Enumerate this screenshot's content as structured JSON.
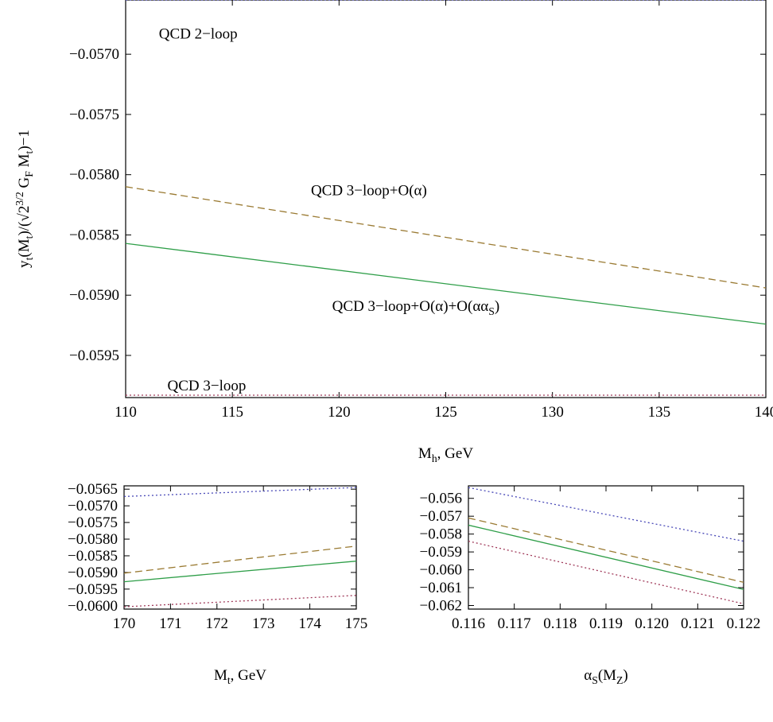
{
  "chart_data": [
    {
      "type": "line",
      "xlabel": "M_h, GeV",
      "ylabel": "y_t(M_t)/(√2^{3/2} G_F M_t)−1",
      "xlim": [
        110,
        140
      ],
      "ylim": [
        -0.05985,
        -0.05655
      ],
      "xticks": [
        110,
        115,
        120,
        125,
        130,
        135,
        140
      ],
      "yticks": [
        -0.057,
        -0.0575,
        -0.058,
        -0.0585,
        -0.059,
        -0.0595
      ],
      "ytick_labels": [
        "−0.0570",
        "−0.0575",
        "−0.0580",
        "−0.0585",
        "−0.0590",
        "−0.0595"
      ],
      "grid": false,
      "series": [
        {
          "name": "QCD 2−loop",
          "color": "#4a4ab8",
          "dash": "dotted",
          "x": [
            110,
            140
          ],
          "y": [
            -0.05655,
            -0.05655
          ]
        },
        {
          "name": "QCD 3−loop+O(α)",
          "color": "#9a7a32",
          "dash": "dashed",
          "x": [
            110,
            140
          ],
          "y": [
            -0.0581,
            -0.05894
          ]
        },
        {
          "name": "QCD 3−loop+O(α)+O(αα_S)",
          "color": "#2e9e48",
          "dash": "solid",
          "x": [
            110,
            140
          ],
          "y": [
            -0.05857,
            -0.05924
          ]
        },
        {
          "name": "QCD 3−loop",
          "color": "#a03a5a",
          "dash": "dotted",
          "x": [
            110,
            140
          ],
          "y": [
            -0.05983,
            -0.05983
          ]
        }
      ],
      "annotations": [
        {
          "text": "QCD 2−loop",
          "x": 113.4,
          "y": -0.05683
        },
        {
          "text": "QCD 3−loop+O(α)",
          "x": 121.4,
          "y": -0.05813
        },
        {
          "text": "QCD 3−loop+O(α)+O(αα_S)",
          "x": 123.6,
          "y": -0.05909
        },
        {
          "text": "QCD 3−loop",
          "x": 113.8,
          "y": -0.05975
        }
      ]
    },
    {
      "type": "line",
      "xlabel": "M_t, GeV",
      "ylabel": "",
      "xlim": [
        170,
        175
      ],
      "ylim": [
        -0.0601,
        -0.0564
      ],
      "xticks": [
        170,
        171,
        172,
        173,
        174,
        175
      ],
      "yticks": [
        -0.0565,
        -0.057,
        -0.0575,
        -0.058,
        -0.0585,
        -0.059,
        -0.0595,
        -0.06
      ],
      "ytick_labels": [
        "−0.0565",
        "−0.0570",
        "−0.0575",
        "−0.0580",
        "−0.0585",
        "−0.0590",
        "−0.0595",
        "−0.0600"
      ],
      "grid": false,
      "series": [
        {
          "color": "#4a4ab8",
          "dash": "dotted",
          "x": [
            170,
            175
          ],
          "y": [
            -0.05672,
            -0.05645
          ]
        },
        {
          "color": "#9a7a32",
          "dash": "dashed",
          "x": [
            170,
            175
          ],
          "y": [
            -0.05902,
            -0.05821
          ]
        },
        {
          "color": "#2e9e48",
          "dash": "solid",
          "x": [
            170,
            175
          ],
          "y": [
            -0.05928,
            -0.05866
          ]
        },
        {
          "color": "#a03a5a",
          "dash": "dotted",
          "x": [
            170,
            175
          ],
          "y": [
            -0.06003,
            -0.05969
          ]
        }
      ]
    },
    {
      "type": "line",
      "xlabel": "α_S(M_Z)",
      "ylabel": "",
      "xlim": [
        0.116,
        0.122
      ],
      "ylim": [
        -0.0622,
        -0.0553
      ],
      "xticks": [
        0.116,
        0.117,
        0.118,
        0.119,
        0.12,
        0.121,
        0.122
      ],
      "xtick_labels": [
        "0.116",
        "0.117",
        "0.118",
        "0.119",
        "0.120",
        "0.121",
        "0.122"
      ],
      "yticks": [
        -0.056,
        -0.057,
        -0.058,
        -0.059,
        -0.06,
        -0.061,
        -0.062
      ],
      "ytick_labels": [
        "−0.056",
        "−0.057",
        "−0.058",
        "−0.059",
        "−0.060",
        "−0.061",
        "−0.062"
      ],
      "grid": false,
      "series": [
        {
          "color": "#4a4ab8",
          "dash": "dotted",
          "x": [
            0.116,
            0.122
          ],
          "y": [
            -0.0554,
            -0.0584
          ]
        },
        {
          "color": "#9a7a32",
          "dash": "dashed",
          "x": [
            0.116,
            0.122
          ],
          "y": [
            -0.0571,
            -0.0607
          ]
        },
        {
          "color": "#2e9e48",
          "dash": "solid",
          "x": [
            0.116,
            0.122
          ],
          "y": [
            -0.0575,
            -0.0611
          ]
        },
        {
          "color": "#a03a5a",
          "dash": "dotted",
          "x": [
            0.116,
            0.122
          ],
          "y": [
            -0.0584,
            -0.0619
          ]
        }
      ]
    }
  ]
}
